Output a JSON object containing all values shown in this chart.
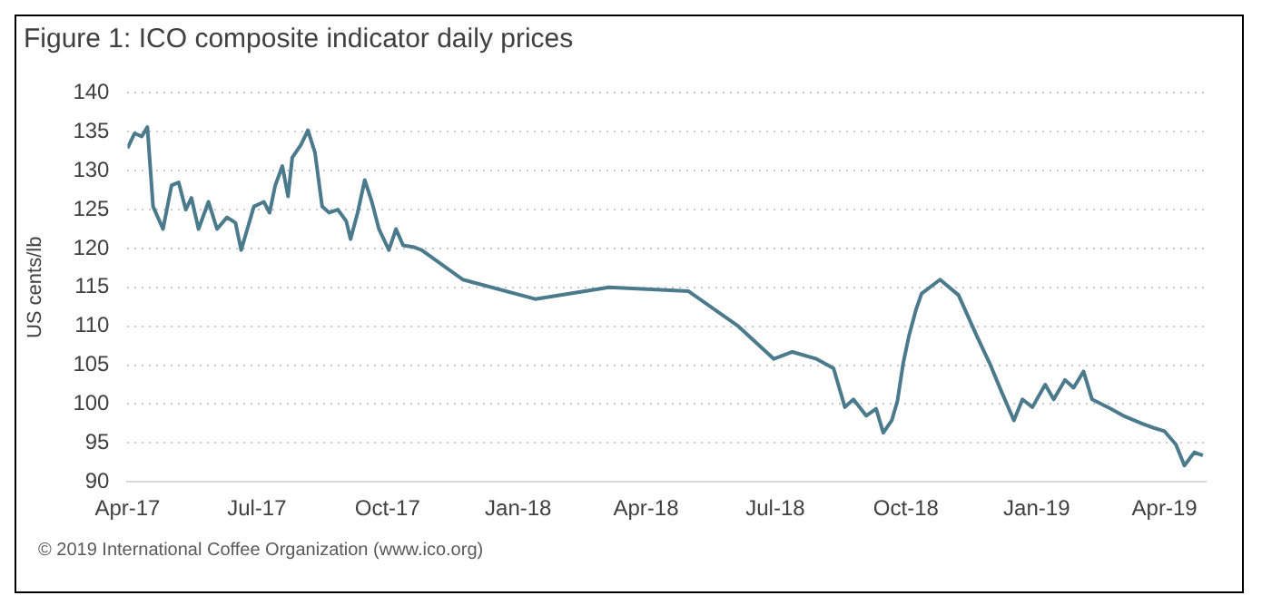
{
  "chart_data": {
    "type": "line",
    "title": "Figure 1: ICO composite indicator daily prices",
    "ylabel": "US cents/lb",
    "annotations": [
      "© 2019 International Coffee Organization (www.ico.org)"
    ],
    "x": [
      "2017-04-01",
      "2017-04-06",
      "2017-04-11",
      "2017-04-15",
      "2017-04-19",
      "2017-04-26",
      "2017-05-02",
      "2017-05-07",
      "2017-05-12",
      "2017-05-16",
      "2017-05-21",
      "2017-05-28",
      "2017-06-03",
      "2017-06-10",
      "2017-06-16",
      "2017-06-20",
      "2017-06-29",
      "2017-07-06",
      "2017-07-10",
      "2017-07-14",
      "2017-07-19",
      "2017-07-23",
      "2017-07-26",
      "2017-08-01",
      "2017-08-06",
      "2017-08-11",
      "2017-08-16",
      "2017-08-21",
      "2017-08-27",
      "2017-09-02",
      "2017-09-05",
      "2017-09-10",
      "2017-09-15",
      "2017-09-20",
      "2017-09-25",
      "2017-10-02",
      "2017-10-07",
      "2017-10-12",
      "2017-10-19",
      "2017-10-25",
      "2017-11-23",
      "2018-01-13",
      "2018-03-06",
      "2018-05-01",
      "2018-06-05",
      "2018-06-30",
      "2018-07-13",
      "2018-07-30",
      "2018-08-11",
      "2018-08-19",
      "2018-08-25",
      "2018-09-03",
      "2018-09-10",
      "2018-09-15",
      "2018-09-21",
      "2018-09-25",
      "2018-09-29",
      "2018-10-03",
      "2018-10-08",
      "2018-10-12",
      "2018-10-25",
      "2018-11-07",
      "2018-11-20",
      "2018-11-29",
      "2018-12-07",
      "2018-12-16",
      "2018-12-22",
      "2018-12-29",
      "2019-01-07",
      "2019-01-13",
      "2019-01-21",
      "2019-01-27",
      "2019-02-03",
      "2019-02-09",
      "2019-02-22",
      "2019-03-03",
      "2019-03-16",
      "2019-03-25",
      "2019-04-01",
      "2019-04-09",
      "2019-04-15",
      "2019-04-22",
      "2019-04-28"
    ],
    "series": [
      {
        "color": "#4a7a8c",
        "values": [
          132.9,
          134.8,
          134.4,
          135.6,
          125.4,
          122.5,
          128.1,
          128.5,
          125,
          126.5,
          122.5,
          126,
          122.5,
          124,
          123.3,
          119.8,
          125.4,
          126,
          124.6,
          128.1,
          130.6,
          126.7,
          131.7,
          133.3,
          135.2,
          132.3,
          125.4,
          124.6,
          125,
          123.5,
          121.2,
          124.6,
          128.8,
          126,
          122.5,
          119.8,
          122.5,
          120.4,
          120.2,
          119.8,
          116,
          113.5,
          115,
          114.5,
          110,
          105.8,
          106.7,
          105.8,
          104.6,
          99.6,
          100.6,
          98.5,
          99.4,
          96.3,
          97.9,
          100.4,
          105.2,
          108.7,
          112.1,
          114.2,
          116,
          114,
          108.7,
          105.2,
          101.7,
          97.9,
          100.6,
          99.6,
          102.5,
          100.6,
          103.1,
          102.1,
          104.2,
          100.6,
          99.4,
          98.5,
          97.5,
          96.9,
          96.5,
          94.8,
          92.1,
          93.8,
          93.4
        ]
      }
    ],
    "xlim": [
      "2017-04-01",
      "2019-04-30"
    ],
    "xticks": [
      {
        "value": "2017-04-01",
        "label": "Apr-17"
      },
      {
        "value": "2017-07-01",
        "label": "Jul-17"
      },
      {
        "value": "2017-10-01",
        "label": "Oct-17"
      },
      {
        "value": "2018-01-01",
        "label": "Jan-18"
      },
      {
        "value": "2018-04-01",
        "label": "Apr-18"
      },
      {
        "value": "2018-07-01",
        "label": "Jul-18"
      },
      {
        "value": "2018-10-01",
        "label": "Oct-18"
      },
      {
        "value": "2019-01-01",
        "label": "Jan-19"
      },
      {
        "value": "2019-04-01",
        "label": "Apr-19"
      }
    ],
    "ylim": [
      90,
      140
    ],
    "yticks": [
      90,
      95,
      100,
      105,
      110,
      115,
      120,
      125,
      130,
      135,
      140
    ],
    "grid": "y",
    "legend": false,
    "marker": "none",
    "line_style": "solid"
  }
}
